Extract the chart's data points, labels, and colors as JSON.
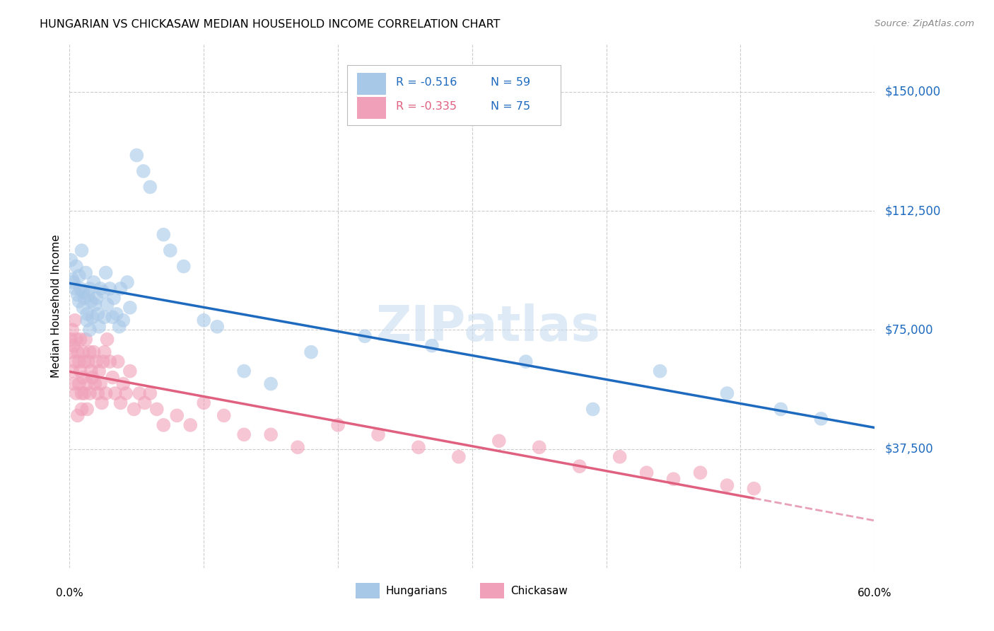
{
  "title": "HUNGARIAN VS CHICKASAW MEDIAN HOUSEHOLD INCOME CORRELATION CHART",
  "source": "Source: ZipAtlas.com",
  "ylabel": "Median Household Income",
  "yticks": [
    37500,
    75000,
    112500,
    150000
  ],
  "ytick_labels": [
    "$37,500",
    "$75,000",
    "$112,500",
    "$150,000"
  ],
  "xlim": [
    0.0,
    0.6
  ],
  "ylim": [
    0,
    165000
  ],
  "watermark": "ZIPatlas",
  "hungarian_color": "#a8c8e8",
  "chickasaw_color": "#f0a0b8",
  "hungarian_line_color": "#1e6abf",
  "chickasaw_line_color": "#e06080",
  "chickasaw_dash_color": "#e8a0b8",
  "legend_R_hungarian": "R = -0.516",
  "legend_N_hungarian": "N = 59",
  "legend_R_chickasaw": "R = -0.335",
  "legend_N_chickasaw": "N = 75",
  "hungarian_scatter_x": [
    0.001,
    0.002,
    0.003,
    0.004,
    0.005,
    0.006,
    0.007,
    0.007,
    0.008,
    0.009,
    0.01,
    0.01,
    0.011,
    0.012,
    0.013,
    0.013,
    0.014,
    0.015,
    0.015,
    0.016,
    0.017,
    0.018,
    0.019,
    0.02,
    0.021,
    0.022,
    0.023,
    0.025,
    0.026,
    0.027,
    0.028,
    0.03,
    0.032,
    0.033,
    0.035,
    0.037,
    0.038,
    0.04,
    0.043,
    0.045,
    0.05,
    0.055,
    0.06,
    0.07,
    0.075,
    0.085,
    0.1,
    0.11,
    0.13,
    0.15,
    0.18,
    0.22,
    0.27,
    0.34,
    0.39,
    0.44,
    0.49,
    0.53,
    0.56
  ],
  "hungarian_scatter_y": [
    97000,
    91000,
    90000,
    88000,
    95000,
    86000,
    84000,
    92000,
    88000,
    100000,
    87000,
    82000,
    85000,
    93000,
    80000,
    78000,
    86000,
    88000,
    75000,
    84000,
    79000,
    90000,
    83000,
    85000,
    80000,
    76000,
    88000,
    87000,
    79000,
    93000,
    83000,
    88000,
    79000,
    85000,
    80000,
    76000,
    88000,
    78000,
    90000,
    82000,
    130000,
    125000,
    120000,
    105000,
    100000,
    95000,
    78000,
    76000,
    62000,
    58000,
    68000,
    73000,
    70000,
    65000,
    50000,
    62000,
    55000,
    50000,
    47000
  ],
  "chickasaw_scatter_x": [
    0.001,
    0.001,
    0.002,
    0.002,
    0.003,
    0.003,
    0.004,
    0.004,
    0.005,
    0.005,
    0.006,
    0.006,
    0.007,
    0.007,
    0.008,
    0.008,
    0.009,
    0.009,
    0.01,
    0.01,
    0.011,
    0.011,
    0.012,
    0.013,
    0.013,
    0.014,
    0.015,
    0.015,
    0.016,
    0.017,
    0.018,
    0.019,
    0.02,
    0.021,
    0.022,
    0.023,
    0.024,
    0.025,
    0.026,
    0.027,
    0.028,
    0.03,
    0.032,
    0.034,
    0.036,
    0.038,
    0.04,
    0.042,
    0.045,
    0.048,
    0.052,
    0.056,
    0.06,
    0.065,
    0.07,
    0.08,
    0.09,
    0.1,
    0.115,
    0.13,
    0.15,
    0.17,
    0.2,
    0.23,
    0.26,
    0.29,
    0.32,
    0.35,
    0.38,
    0.41,
    0.43,
    0.45,
    0.47,
    0.49,
    0.51
  ],
  "chickasaw_scatter_y": [
    72000,
    68000,
    75000,
    62000,
    70000,
    58000,
    78000,
    65000,
    72000,
    55000,
    68000,
    48000,
    65000,
    58000,
    62000,
    72000,
    55000,
    50000,
    68000,
    60000,
    65000,
    55000,
    72000,
    58000,
    50000,
    65000,
    68000,
    55000,
    62000,
    60000,
    68000,
    58000,
    65000,
    55000,
    62000,
    58000,
    52000,
    65000,
    68000,
    55000,
    72000,
    65000,
    60000,
    55000,
    65000,
    52000,
    58000,
    55000,
    62000,
    50000,
    55000,
    52000,
    55000,
    50000,
    45000,
    48000,
    45000,
    52000,
    48000,
    42000,
    42000,
    38000,
    45000,
    42000,
    38000,
    35000,
    40000,
    38000,
    32000,
    35000,
    30000,
    28000,
    30000,
    26000,
    25000
  ]
}
